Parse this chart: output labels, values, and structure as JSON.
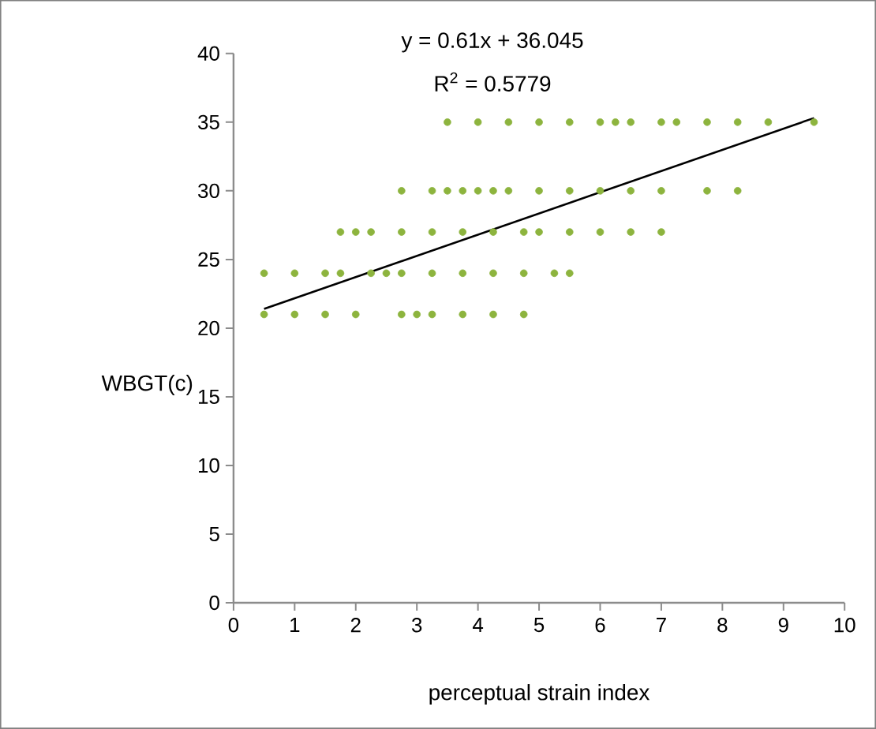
{
  "chart_data": {
    "type": "scatter",
    "xlabel": "perceptual strain index",
    "ylabel": "WBGT(c)",
    "annotations": [
      "y = 0.61x + 36.045",
      "R$^{2}$ = 0.5779"
    ],
    "xlim": [
      0,
      10
    ],
    "ylim": [
      0,
      40
    ],
    "xticks": [
      0,
      1,
      2,
      3,
      4,
      5,
      6,
      7,
      8,
      9,
      10
    ],
    "yticks": [
      0,
      5,
      10,
      15,
      20,
      25,
      30,
      35,
      40
    ],
    "grid": false,
    "series": [
      {
        "marker": "circle",
        "color": "#8db43e",
        "x": [
          3.5,
          4,
          4.5,
          5,
          5.5,
          6,
          6.25,
          6.5,
          7,
          7.25,
          7.75,
          8.25,
          8.75,
          9.5,
          2.75,
          3.25,
          3.5,
          3.75,
          4,
          4.25,
          4.5,
          5,
          5.5,
          6,
          6.5,
          7,
          7.75,
          8.25,
          1.75,
          2,
          2.25,
          2.75,
          3.25,
          3.75,
          4.25,
          4.75,
          5,
          5.5,
          6,
          6.5,
          7,
          0.5,
          1,
          1.5,
          1.75,
          2.25,
          2.5,
          2.75,
          3.25,
          3.75,
          4.25,
          4.75,
          5.25,
          5.5,
          0.5,
          1,
          1.5,
          2,
          2.75,
          3,
          3.25,
          3.75,
          4.25,
          4.75
        ],
        "values": [
          35,
          35,
          35,
          35,
          35,
          35,
          35,
          35,
          35,
          35,
          35,
          35,
          35,
          35,
          30,
          30,
          30,
          30,
          30,
          30,
          30,
          30,
          30,
          30,
          30,
          30,
          30,
          30,
          27,
          27,
          27,
          27,
          27,
          27,
          27,
          27,
          27,
          27,
          27,
          27,
          27,
          24,
          24,
          24,
          24,
          24,
          24,
          24,
          24,
          24,
          24,
          24,
          24,
          24,
          21,
          21,
          21,
          21,
          21,
          21,
          21,
          21,
          21,
          21
        ]
      },
      {
        "type": "line",
        "marker": "none",
        "color": "#000000",
        "x": [
          0.5,
          9.5
        ],
        "values": [
          21.4,
          35.3
        ]
      }
    ]
  }
}
